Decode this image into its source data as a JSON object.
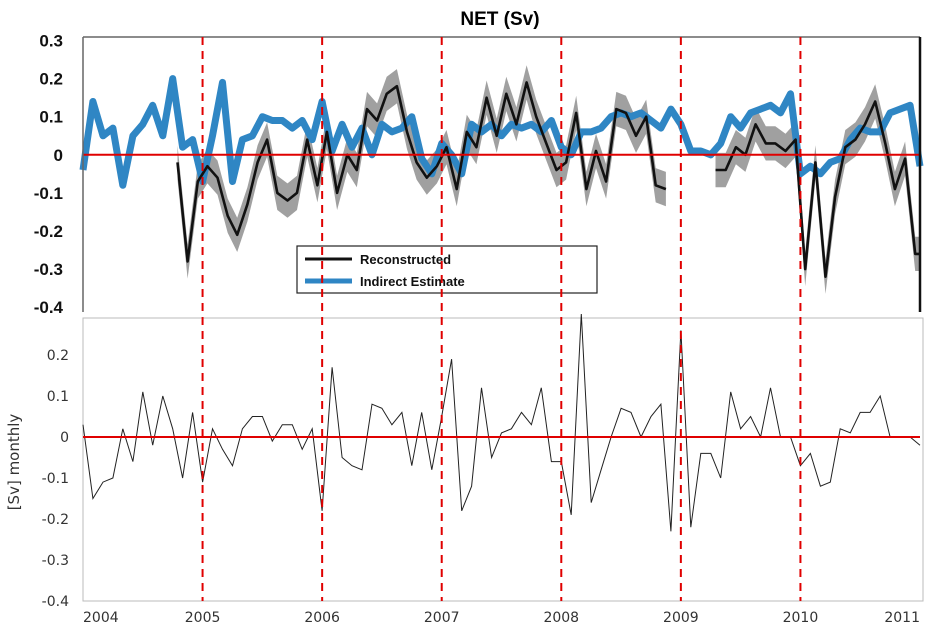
{
  "chart_data": [
    {
      "type": "line",
      "title": "NET (Sv)",
      "xlabel": "",
      "ylabel": "",
      "xlim": [
        2004,
        2011
      ],
      "ylim": [
        -0.42,
        0.3
      ],
      "yticks": [
        0.3,
        0.2,
        0.1,
        0,
        -0.1,
        -0.2,
        -0.3,
        -0.4
      ],
      "ytick_labels": [
        "0.3",
        "0.2",
        "0.1",
        "0",
        "-0.1",
        "-0.2",
        "-0.3",
        "-0.4"
      ],
      "zero_line_color": "#e00000",
      "year_marker_color": "#e00000",
      "year_markers": [
        2005,
        2006,
        2007,
        2008,
        2009,
        2010
      ],
      "legend_position": "lower-center",
      "series": [
        {
          "name": "Reconstructed",
          "color": "#111111",
          "band_color": "#8f8f8f",
          "band_halfwidth": 0.045,
          "x": [
            2004.79,
            2004.875,
            2004.96,
            2005.04,
            2005.125,
            2005.21,
            2005.29,
            2005.375,
            2005.46,
            2005.54,
            2005.625,
            2005.71,
            2005.79,
            2005.875,
            2005.96,
            2006.04,
            2006.125,
            2006.21,
            2006.29,
            2006.375,
            2006.46,
            2006.54,
            2006.625,
            2006.71,
            2006.79,
            2006.875,
            2006.96,
            2007.04,
            2007.125,
            2007.21,
            2007.29,
            2007.375,
            2007.46,
            2007.54,
            2007.625,
            2007.71,
            2007.79,
            2007.875,
            2007.96,
            2008.04,
            2008.125,
            2008.21,
            2008.29,
            2008.375,
            2008.46,
            2008.54,
            2008.625,
            2008.71,
            2008.79,
            2008.875,
            2008.96,
            2009.04,
            2009.125,
            2009.21,
            2009.29,
            2009.375,
            2009.46,
            2009.54,
            2009.625,
            2009.71,
            2009.79,
            2009.875,
            2009.96,
            2010.04,
            2010.125,
            2010.21,
            2010.29,
            2010.375,
            2010.46,
            2010.54,
            2010.625,
            2010.71,
            2010.79,
            2010.875,
            2010.96,
            2011.0
          ],
          "y": [
            -0.02,
            -0.28,
            -0.07,
            -0.03,
            -0.06,
            -0.16,
            -0.21,
            -0.13,
            -0.02,
            0.04,
            -0.1,
            -0.12,
            -0.1,
            0.04,
            -0.08,
            0.06,
            -0.1,
            0.0,
            -0.04,
            0.12,
            0.09,
            0.16,
            0.18,
            0.06,
            -0.02,
            -0.06,
            -0.03,
            0.02,
            -0.09,
            0.06,
            0.02,
            0.15,
            0.05,
            0.16,
            0.08,
            0.19,
            0.1,
            0.03,
            -0.04,
            -0.02,
            0.11,
            -0.09,
            0.01,
            -0.07,
            0.12,
            0.11,
            0.05,
            0.1,
            -0.08,
            -0.09,
            null,
            null,
            null,
            null,
            -0.04,
            -0.04,
            0.02,
            0.0,
            0.08,
            0.03,
            0.03,
            0.01,
            0.04,
            -0.3,
            -0.02,
            -0.32,
            -0.11,
            0.02,
            0.04,
            0.08,
            0.14,
            0.03,
            -0.09,
            -0.01,
            -0.26,
            -0.26
          ]
        },
        {
          "name": "Indirect Estimate",
          "color": "#2f86c4",
          "x": [
            2004.0,
            2004.083,
            2004.167,
            2004.25,
            2004.333,
            2004.417,
            2004.5,
            2004.583,
            2004.667,
            2004.75,
            2004.833,
            2004.917,
            2005.0,
            2005.083,
            2005.167,
            2005.25,
            2005.333,
            2005.417,
            2005.5,
            2005.583,
            2005.667,
            2005.75,
            2005.833,
            2005.917,
            2006.0,
            2006.083,
            2006.167,
            2006.25,
            2006.333,
            2006.417,
            2006.5,
            2006.583,
            2006.667,
            2006.75,
            2006.833,
            2006.917,
            2007.0,
            2007.083,
            2007.167,
            2007.25,
            2007.333,
            2007.417,
            2007.5,
            2007.583,
            2007.667,
            2007.75,
            2007.833,
            2007.917,
            2008.0,
            2008.083,
            2008.167,
            2008.25,
            2008.333,
            2008.417,
            2008.5,
            2008.583,
            2008.667,
            2008.75,
            2008.833,
            2008.917,
            2009.0,
            2009.083,
            2009.167,
            2009.25,
            2009.333,
            2009.417,
            2009.5,
            2009.583,
            2009.667,
            2009.75,
            2009.833,
            2009.917,
            2010.0,
            2010.083,
            2010.167,
            2010.25,
            2010.333,
            2010.417,
            2010.5,
            2010.583,
            2010.667,
            2010.75,
            2010.833,
            2010.917,
            2011.0
          ],
          "y": [
            -0.04,
            0.14,
            0.05,
            0.07,
            -0.08,
            0.05,
            0.08,
            0.13,
            0.05,
            0.2,
            0.02,
            0.04,
            -0.07,
            0.05,
            0.19,
            -0.07,
            0.04,
            0.05,
            0.1,
            0.09,
            0.09,
            0.07,
            0.09,
            0.04,
            0.14,
            0.01,
            0.08,
            0.02,
            0.07,
            0.0,
            0.08,
            0.06,
            0.07,
            0.1,
            -0.01,
            -0.05,
            0.03,
            0.0,
            -0.05,
            0.08,
            0.06,
            0.08,
            0.05,
            0.08,
            0.07,
            0.08,
            0.06,
            0.09,
            0.02,
            0.0,
            0.06,
            0.06,
            0.07,
            0.1,
            0.11,
            0.1,
            0.11,
            0.09,
            0.07,
            0.12,
            0.08,
            0.01,
            0.01,
            0.0,
            0.03,
            0.1,
            0.07,
            0.11,
            0.12,
            0.13,
            0.11,
            0.16,
            -0.05,
            -0.03,
            -0.05,
            -0.02,
            -0.01,
            0.04,
            0.07,
            0.06,
            0.06,
            0.11,
            0.12,
            0.13,
            -0.03
          ]
        }
      ]
    },
    {
      "type": "line",
      "title": "",
      "xlabel": "",
      "ylabel": "[Sv] monthly",
      "xlim": [
        2004,
        2011
      ],
      "ylim": [
        -0.4,
        0.3
      ],
      "yticks": [
        0.2,
        0.1,
        0,
        -0.1,
        -0.2,
        -0.3,
        -0.4
      ],
      "ytick_labels": [
        "0.2",
        "0.1",
        "0",
        "-0.1",
        "-0.2",
        "-0.3",
        "-0.4"
      ],
      "xticks": [
        2004,
        2005,
        2006,
        2007,
        2008,
        2009,
        2010,
        2011
      ],
      "xtick_labels": [
        "2004",
        "2005",
        "2006",
        "2007",
        "2008",
        "2009",
        "2010",
        "2011"
      ],
      "zero_line_color": "#e00000",
      "year_marker_color": "#e00000",
      "year_markers": [
        2005,
        2006,
        2007,
        2008,
        2009,
        2010
      ],
      "series": [
        {
          "color": "#222222",
          "x": [
            2004.0,
            2004.083,
            2004.167,
            2004.25,
            2004.333,
            2004.417,
            2004.5,
            2004.583,
            2004.667,
            2004.75,
            2004.833,
            2004.917,
            2005.0,
            2005.083,
            2005.167,
            2005.25,
            2005.333,
            2005.417,
            2005.5,
            2005.583,
            2005.667,
            2005.75,
            2005.833,
            2005.917,
            2006.0,
            2006.083,
            2006.167,
            2006.25,
            2006.333,
            2006.417,
            2006.5,
            2006.583,
            2006.667,
            2006.75,
            2006.833,
            2006.917,
            2007.0,
            2007.083,
            2007.167,
            2007.25,
            2007.333,
            2007.417,
            2007.5,
            2007.583,
            2007.667,
            2007.75,
            2007.833,
            2007.917,
            2008.0,
            2008.083,
            2008.167,
            2008.25,
            2008.333,
            2008.417,
            2008.5,
            2008.583,
            2008.667,
            2008.75,
            2008.833,
            2008.917,
            2009.0,
            2009.083,
            2009.167,
            2009.25,
            2009.333,
            2009.417,
            2009.5,
            2009.583,
            2009.667,
            2009.75,
            2009.833,
            2009.917,
            2010.0,
            2010.083,
            2010.167,
            2010.25,
            2010.333,
            2010.417,
            2010.5,
            2010.583,
            2010.667,
            2010.75,
            2010.833,
            2010.917,
            2011.0
          ],
          "y": [
            0.03,
            -0.15,
            -0.11,
            -0.1,
            0.02,
            -0.06,
            0.11,
            -0.02,
            0.1,
            0.02,
            -0.1,
            0.06,
            -0.11,
            0.02,
            -0.03,
            -0.07,
            0.02,
            0.05,
            0.05,
            -0.01,
            0.03,
            0.03,
            -0.03,
            0.02,
            -0.18,
            0.17,
            -0.05,
            -0.07,
            -0.08,
            0.08,
            0.07,
            0.03,
            0.06,
            -0.07,
            0.06,
            -0.08,
            0.05,
            0.19,
            -0.18,
            -0.12,
            0.12,
            -0.05,
            0.01,
            0.02,
            0.06,
            0.03,
            0.12,
            -0.06,
            -0.06,
            -0.19,
            0.3,
            -0.16,
            -0.08,
            0.0,
            0.07,
            0.06,
            0.0,
            0.05,
            0.08,
            -0.23,
            0.26,
            -0.22,
            -0.04,
            -0.04,
            -0.1,
            0.11,
            0.02,
            0.05,
            0.0,
            0.12,
            0.0,
            0.0,
            -0.07,
            -0.04,
            -0.12,
            -0.11,
            0.02,
            0.01,
            0.06,
            0.06,
            0.1,
            0.0,
            0.0,
            0.0,
            -0.02
          ]
        }
      ]
    }
  ]
}
